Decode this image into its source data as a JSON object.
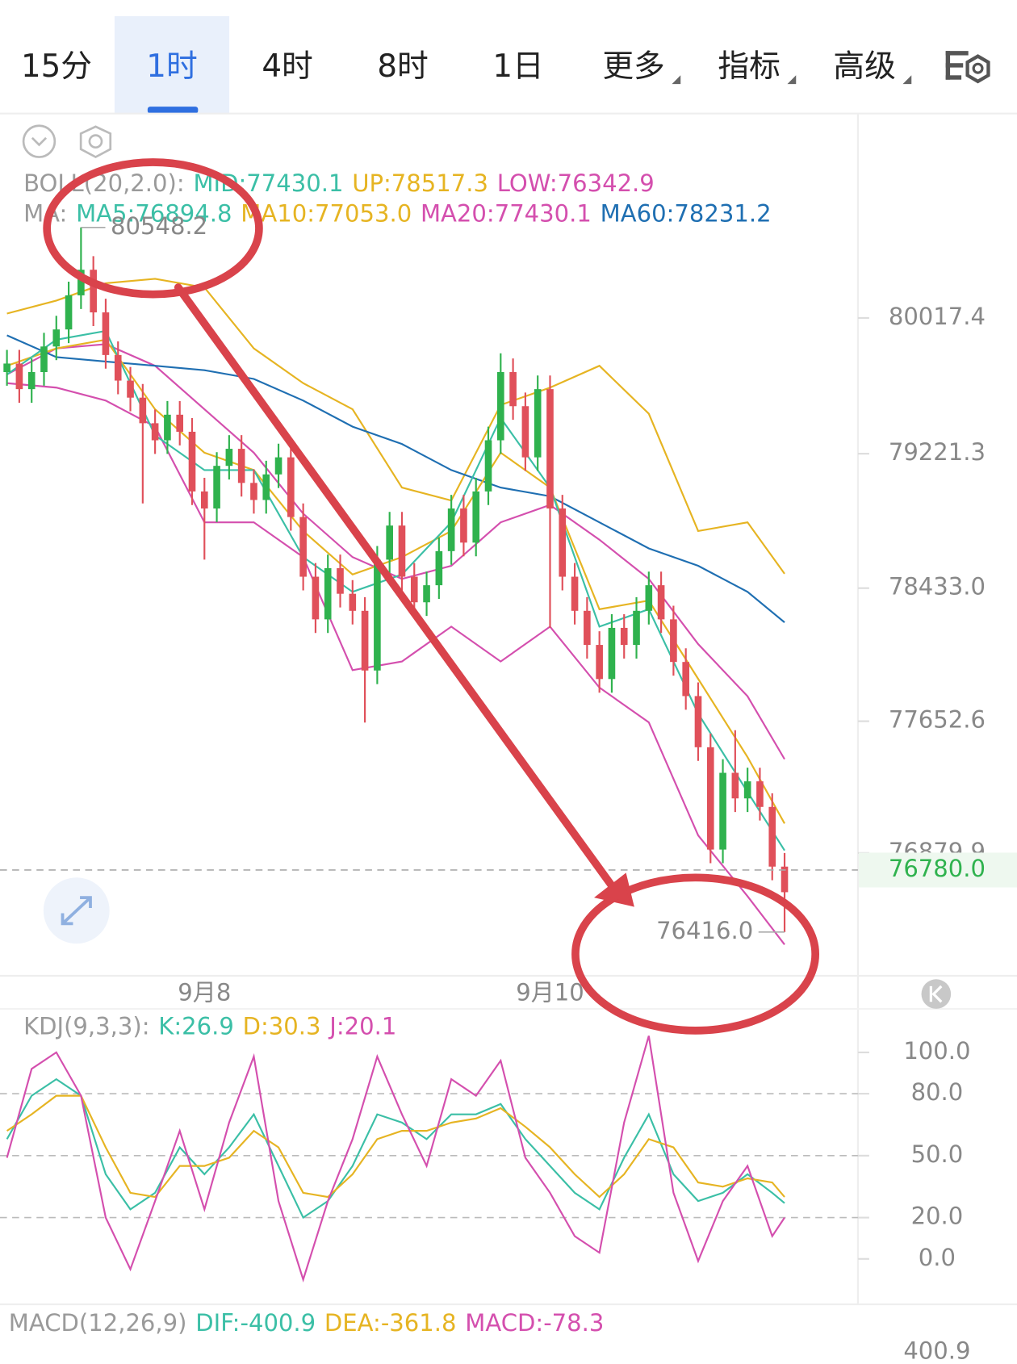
{
  "tabs": [
    {
      "label": "15分"
    },
    {
      "label": "1时",
      "selected": true
    },
    {
      "label": "4时"
    },
    {
      "label": "8时"
    },
    {
      "label": "1日"
    },
    {
      "label": "更多",
      "dropdown": true
    },
    {
      "label": "指标",
      "dropdown": true
    },
    {
      "label": "高级",
      "dropdown": true
    }
  ],
  "chart_data": [
    {
      "type": "candlestick",
      "legend_rows": [
        [
          {
            "text": "BOLL(20,2.0):",
            "color": "#9a9a9a"
          },
          {
            "text": "MID:77430.1",
            "color": "#3bbfa6"
          },
          {
            "text": "UP:78517.3",
            "color": "#e6b422"
          },
          {
            "text": "LOW:76342.9",
            "color": "#d44fae"
          }
        ],
        [
          {
            "text": "MA:",
            "color": "#9a9a9a"
          },
          {
            "text": "MA5:76894.8",
            "color": "#3bbfa6"
          },
          {
            "text": "MA10:77053.0",
            "color": "#e6b422"
          },
          {
            "text": "MA20:77430.1",
            "color": "#d44fae"
          },
          {
            "text": "MA60:78231.2",
            "color": "#1f6fb2"
          }
        ]
      ],
      "up_color": "#2fb24e",
      "down_color": "#e0505a",
      "open": [
        79700,
        79750,
        79600,
        79700,
        79850,
        79950,
        80150,
        80300,
        80050,
        79800,
        79650,
        79550,
        79400,
        79300,
        79450,
        79350,
        79000,
        78900,
        79150,
        79250,
        79050,
        78950,
        79100,
        79200,
        78850,
        78500,
        78250,
        78550,
        78400,
        78300,
        77950,
        78600,
        78800,
        78500,
        78350,
        78450,
        78650,
        78900,
        78700,
        79000,
        79300,
        79700,
        79500,
        79200,
        79600,
        78900,
        78500,
        78300,
        78100,
        77900,
        78200,
        78100,
        78300,
        78450,
        78250,
        78000,
        77800,
        77500,
        76900,
        77350,
        77200,
        77300,
        77150,
        76800
      ],
      "high": [
        79830,
        79830,
        79780,
        79930,
        80030,
        80230,
        80548.2,
        80380,
        80130,
        79880,
        79730,
        79630,
        79480,
        79530,
        79530,
        79430,
        79080,
        79230,
        79330,
        79330,
        79130,
        79180,
        79280,
        79280,
        78930,
        78580,
        78630,
        78630,
        78480,
        78380,
        78680,
        78880,
        78880,
        78580,
        78530,
        78730,
        78980,
        78980,
        79080,
        79380,
        79810,
        79780,
        79580,
        79680,
        79680,
        78980,
        78580,
        78380,
        78180,
        78280,
        78280,
        78380,
        78530,
        78530,
        78330,
        78080,
        77880,
        77580,
        77430,
        77600,
        77380,
        77380,
        77230,
        76880
      ],
      "low": [
        79620,
        79520,
        79520,
        79620,
        79770,
        79870,
        80070,
        79970,
        79720,
        79570,
        79470,
        78930,
        79220,
        79220,
        79270,
        78920,
        78600,
        78820,
        79070,
        78970,
        78870,
        78870,
        79020,
        78770,
        78420,
        78170,
        78170,
        78320,
        78220,
        77645,
        77870,
        78520,
        78420,
        78270,
        78270,
        78370,
        78570,
        78620,
        78620,
        78920,
        79220,
        79420,
        79120,
        79120,
        78200,
        78420,
        78220,
        78020,
        77820,
        77820,
        78020,
        78020,
        78220,
        78170,
        77920,
        77720,
        77420,
        76820,
        76820,
        77120,
        77120,
        77070,
        76720,
        76416
      ],
      "close": [
        79750,
        79600,
        79700,
        79850,
        79950,
        80150,
        80300,
        80050,
        79800,
        79650,
        79550,
        79400,
        79300,
        79450,
        79350,
        79000,
        78900,
        79150,
        79250,
        79050,
        78950,
        79100,
        79200,
        78850,
        78500,
        78250,
        78550,
        78400,
        78300,
        77950,
        78600,
        78800,
        78500,
        78350,
        78450,
        78650,
        78900,
        78700,
        79000,
        79300,
        79700,
        79500,
        79200,
        79600,
        78900,
        78500,
        78300,
        78100,
        77900,
        78200,
        78100,
        78300,
        78450,
        78250,
        78000,
        77800,
        77500,
        76900,
        77350,
        77200,
        77300,
        77150,
        76800,
        76650
      ],
      "max_label": "80548.2",
      "min_label": "76416.0",
      "overlays": [
        {
          "color": "#e6b422",
          "x": [
            0,
            4,
            8,
            12,
            16,
            20,
            24,
            28,
            32,
            36,
            40,
            44,
            48,
            52,
            56,
            60,
            63
          ],
          "values": [
            80043,
            80119,
            80221,
            80247,
            80196,
            79839,
            79635,
            79482,
            79023,
            78947,
            79507,
            79609,
            79737,
            79456,
            78768,
            78819,
            78517
          ]
        },
        {
          "color": "#d44fae",
          "x": [
            0,
            4,
            8,
            12,
            16,
            20,
            24,
            28,
            32,
            36,
            40,
            44,
            48,
            52,
            56,
            60,
            63
          ],
          "values": [
            79686,
            79839,
            79864,
            79737,
            79482,
            79227,
            78870,
            78615,
            78487,
            78564,
            78819,
            78921,
            78717,
            78487,
            78105,
            77799,
            77430
          ]
        },
        {
          "color": "#d44fae",
          "x": [
            0,
            4,
            8,
            12,
            16,
            20,
            24,
            28,
            32,
            36,
            40,
            44,
            48,
            52,
            56,
            60,
            63
          ],
          "values": [
            79635,
            79609,
            79533,
            79380,
            78819,
            78819,
            78615,
            77952,
            78003,
            78207,
            78003,
            78207,
            77850,
            77646,
            76983,
            76626,
            76343
          ]
        },
        {
          "color": "#1f6fb2",
          "x": [
            0,
            4,
            8,
            12,
            16,
            20,
            24,
            28,
            32,
            36,
            40,
            44,
            48,
            52,
            56,
            60,
            63
          ],
          "values": [
            79915,
            79788,
            79762,
            79737,
            79711,
            79660,
            79533,
            79380,
            79278,
            79125,
            79023,
            78972,
            78819,
            78666,
            78564,
            78411,
            78232
          ]
        },
        {
          "color": "#e6b422",
          "x": [
            0,
            4,
            8,
            12,
            16,
            20,
            24,
            28,
            32,
            36,
            40,
            44,
            48,
            52,
            56,
            60,
            63
          ],
          "values": [
            79737,
            79839,
            79890,
            79482,
            79227,
            79125,
            78768,
            78513,
            78615,
            78768,
            79227,
            79023,
            78309,
            78360,
            77901,
            77442,
            77053
          ]
        },
        {
          "color": "#3bbfa6",
          "x": [
            0,
            4,
            8,
            12,
            16,
            20,
            24,
            28,
            32,
            36,
            40,
            44,
            48,
            52,
            56,
            60,
            63
          ],
          "values": [
            79686,
            79890,
            79941,
            79329,
            79125,
            79125,
            78615,
            78411,
            78513,
            78819,
            79431,
            79023,
            78207,
            78309,
            77697,
            77238,
            76895
          ]
        }
      ],
      "ylim": [
        76170,
        81165
      ],
      "yticks": [
        80017.4,
        79221.3,
        {
          "value": 78433,
          "label": "78433.0"
        },
        77652.6,
        76879.9
      ],
      "current_price": {
        "value": 76780,
        "label": "76780.0"
      },
      "xticks": [
        {
          "value": 16,
          "label": "9月8"
        },
        {
          "value": 44,
          "label": "9月10"
        }
      ]
    },
    {
      "type": "line",
      "legend": [
        {
          "text": "KDJ(9,3,3):",
          "color": "#9a9a9a"
        },
        {
          "text": "K:26.9",
          "color": "#3bbfa6"
        },
        {
          "text": "D:30.3",
          "color": "#e6b422"
        },
        {
          "text": "J:20.1",
          "color": "#d44fae"
        }
      ],
      "x": [
        0,
        2,
        4,
        6,
        8,
        10,
        12,
        14,
        16,
        18,
        20,
        22,
        24,
        26,
        28,
        30,
        32,
        34,
        36,
        38,
        40,
        42,
        44,
        46,
        48,
        50,
        52,
        54,
        56,
        58,
        60,
        62,
        63
      ],
      "series": [
        {
          "color": "#3bbfa6",
          "values": [
            58,
            79,
            87,
            79,
            41,
            24,
            32,
            54,
            41,
            54,
            70,
            45,
            20,
            28,
            45,
            70,
            66,
            58,
            70,
            70,
            75,
            58,
            45,
            32,
            24,
            49,
            70,
            41,
            28,
            32,
            41,
            32,
            27
          ]
        },
        {
          "color": "#e6b422",
          "values": [
            62,
            70,
            79,
            79,
            54,
            32,
            30,
            45,
            45,
            49,
            62,
            54,
            32,
            30,
            41,
            58,
            62,
            62,
            66,
            68,
            73,
            64,
            54,
            41,
            30,
            41,
            58,
            54,
            37,
            35,
            39,
            37,
            30
          ]
        },
        {
          "color": "#d44fae",
          "values": [
            49,
            92,
            100,
            79,
            20,
            -5,
            28,
            62,
            24,
            66,
            98,
            28,
            -10,
            28,
            58,
            98,
            70,
            45,
            87,
            79,
            96,
            49,
            32,
            11,
            3,
            66,
            108,
            32,
            -1,
            28,
            45,
            11,
            20
          ]
        }
      ],
      "ylim": [
        -22,
        119
      ],
      "yticks": [
        {
          "value": 100,
          "label": "100.0"
        },
        {
          "value": 80,
          "label": "80.0",
          "grid": true
        },
        {
          "value": 50,
          "label": "50.0",
          "grid": true
        },
        {
          "value": 20,
          "label": "20.0",
          "grid": true
        },
        {
          "value": 0,
          "label": "0.0"
        }
      ]
    }
  ],
  "macd": {
    "legend": [
      {
        "text": "MACD(12,26,9)",
        "color": "#9a9a9a"
      },
      {
        "text": "DIF:-400.9",
        "color": "#3bbfa6"
      },
      {
        "text": "DEA:-361.8",
        "color": "#e6b422"
      },
      {
        "text": "MACD:-78.3",
        "color": "#d44fae"
      }
    ],
    "yticks": [
      400.9
    ]
  }
}
